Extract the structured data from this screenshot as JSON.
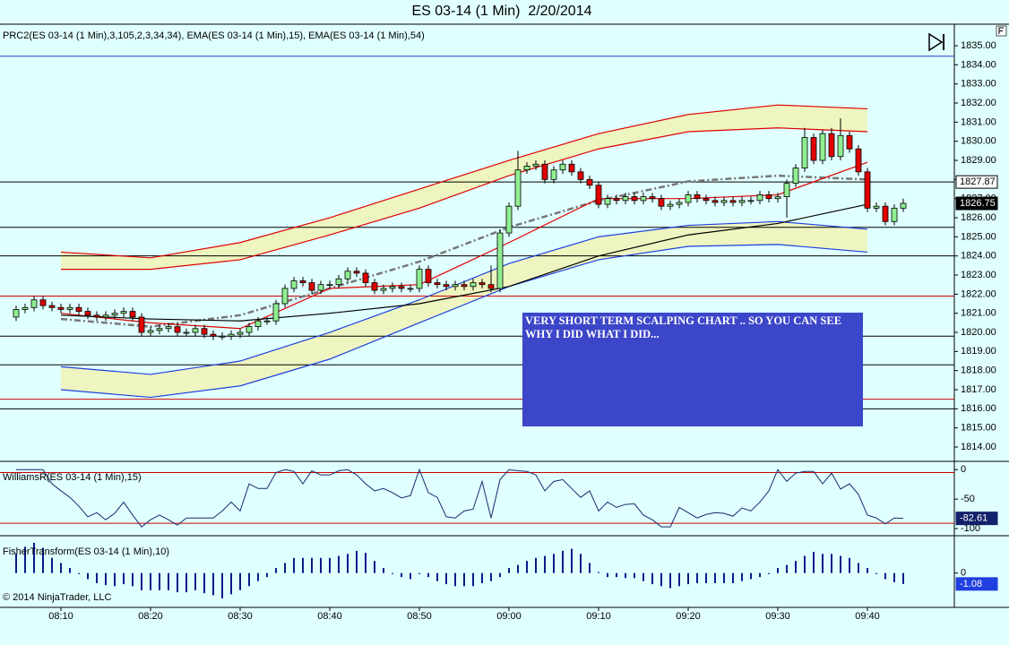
{
  "title": "ES 03-14 (1 Min)  2/20/2014",
  "copyright": "© 2014 NinjaTrader, LLC",
  "chart_data": [
    {
      "type": "candlestick",
      "label": "PRC2(ES 03-14 (1 Min),3,105,2,3,34,34), EMA(ES 03-14 (1 Min),15), EMA(ES 03-14 (1 Min),54)",
      "categories": [
        null,
        null,
        null,
        null,
        null,
        "08:10",
        null,
        null,
        null,
        null,
        null,
        null,
        null,
        null,
        null,
        "08:20",
        null,
        null,
        null,
        null,
        null,
        null,
        null,
        null,
        null,
        "08:30",
        null,
        null,
        null,
        null,
        null,
        null,
        null,
        null,
        null,
        "08:40",
        null,
        null,
        null,
        null,
        null,
        null,
        null,
        null,
        null,
        "08:50",
        null,
        null,
        null,
        null,
        null,
        null,
        null,
        null,
        null,
        "09:00",
        null,
        null,
        null,
        null,
        null,
        null,
        null,
        null,
        null,
        "09:10",
        null,
        null,
        null,
        null,
        null,
        null,
        null,
        null,
        null,
        "09:20",
        null,
        null,
        null,
        null,
        null,
        null,
        null,
        null,
        null,
        "09:30",
        null,
        null,
        null,
        null,
        null,
        null,
        null,
        null,
        null,
        "09:40",
        null,
        null,
        null,
        null
      ],
      "open": [
        1820.8,
        1821.2,
        1821.3,
        1821.7,
        1821.4,
        1821.3,
        1821.2,
        1821.3,
        1821.1,
        1820.9,
        1820.8,
        1820.9,
        1821.0,
        1821.1,
        1820.8,
        1820.0,
        1820.1,
        1820.2,
        1820.3,
        1820.0,
        1820.0,
        1820.2,
        1819.9,
        1819.8,
        1819.8,
        1819.9,
        1820.0,
        1820.3,
        1820.6,
        1820.6,
        1821.5,
        1822.3,
        1822.7,
        1822.6,
        1822.2,
        1822.5,
        1822.5,
        1822.8,
        1823.2,
        1823.1,
        1822.6,
        1822.2,
        1822.3,
        1822.4,
        1822.3,
        1822.3,
        1823.3,
        1822.6,
        1822.5,
        1822.4,
        1822.5,
        1822.4,
        1822.6,
        1822.5,
        1822.3,
        1825.2,
        1826.6,
        1828.5,
        1828.7,
        1828.8,
        1828.0,
        1828.5,
        1828.8,
        1828.4,
        1828.0,
        1827.7,
        1826.7,
        1827.0,
        1826.9,
        1827.1,
        1826.9,
        1827.1,
        1827.0,
        1826.6,
        1826.7,
        1826.8,
        1827.2,
        1827.0,
        1826.9,
        1826.8,
        1826.9,
        1826.8,
        1826.9,
        1826.9,
        1827.2,
        1827.0,
        1827.1,
        1827.8,
        1828.6,
        1830.2,
        1829.0,
        1830.4,
        1829.2,
        1830.3,
        1829.6,
        1828.4,
        1826.5,
        1826.6,
        1825.8,
        1826.5
      ],
      "high": [
        1821.4,
        1821.5,
        1821.9,
        1821.9,
        1821.6,
        1821.5,
        1821.5,
        1821.5,
        1821.3,
        1821.1,
        1821.1,
        1821.2,
        1821.3,
        1821.3,
        1821.0,
        1820.3,
        1820.4,
        1820.5,
        1820.5,
        1820.2,
        1820.4,
        1820.4,
        1820.1,
        1820.0,
        1820.1,
        1820.2,
        1820.5,
        1820.8,
        1820.8,
        1821.7,
        1822.5,
        1822.9,
        1822.9,
        1822.8,
        1822.7,
        1822.7,
        1823.0,
        1823.4,
        1823.4,
        1823.3,
        1822.8,
        1822.5,
        1822.6,
        1822.6,
        1822.5,
        1823.5,
        1823.5,
        1822.8,
        1822.7,
        1822.7,
        1822.7,
        1822.8,
        1822.8,
        1823.5,
        1825.4,
        1826.8,
        1829.5,
        1828.9,
        1829.0,
        1829.0,
        1828.7,
        1829.0,
        1829.0,
        1828.6,
        1828.2,
        1827.9,
        1827.2,
        1827.2,
        1827.3,
        1827.3,
        1827.3,
        1827.3,
        1827.2,
        1826.9,
        1827.0,
        1827.4,
        1827.4,
        1827.2,
        1827.1,
        1827.1,
        1827.1,
        1827.1,
        1827.1,
        1827.4,
        1827.4,
        1827.3,
        1828.0,
        1828.8,
        1830.7,
        1830.4,
        1830.6,
        1830.7,
        1831.2,
        1830.5,
        1829.8,
        1828.6,
        1826.8,
        1826.8,
        1826.7,
        1827.0
      ],
      "low": [
        1820.6,
        1821.0,
        1821.1,
        1821.2,
        1821.1,
        1821.0,
        1821.0,
        1820.9,
        1820.7,
        1820.6,
        1820.6,
        1820.7,
        1820.8,
        1820.6,
        1819.8,
        1819.8,
        1819.9,
        1820.0,
        1819.8,
        1819.8,
        1819.8,
        1819.7,
        1819.6,
        1819.6,
        1819.6,
        1819.7,
        1819.8,
        1820.1,
        1820.4,
        1820.4,
        1821.3,
        1822.1,
        1822.4,
        1822.0,
        1822.0,
        1822.3,
        1822.3,
        1822.6,
        1822.9,
        1822.4,
        1822.0,
        1822.0,
        1822.1,
        1822.1,
        1822.1,
        1822.1,
        1822.4,
        1822.3,
        1822.2,
        1822.2,
        1822.2,
        1822.2,
        1822.3,
        1822.1,
        1822.1,
        1825.0,
        1826.4,
        1828.3,
        1828.5,
        1827.8,
        1827.8,
        1828.3,
        1828.2,
        1827.8,
        1827.5,
        1826.5,
        1826.5,
        1826.7,
        1826.7,
        1826.7,
        1826.7,
        1826.8,
        1826.4,
        1826.4,
        1826.5,
        1826.6,
        1826.8,
        1826.7,
        1826.6,
        1826.6,
        1826.6,
        1826.6,
        1826.7,
        1826.7,
        1826.8,
        1826.8,
        1826.0,
        1827.6,
        1828.4,
        1828.8,
        1828.8,
        1829.0,
        1829.0,
        1829.4,
        1828.2,
        1826.3,
        1826.3,
        1825.6,
        1825.6,
        1826.3
      ],
      "close": [
        1821.2,
        1821.3,
        1821.7,
        1821.4,
        1821.3,
        1821.2,
        1821.3,
        1821.1,
        1820.9,
        1820.8,
        1820.9,
        1821.0,
        1821.1,
        1820.8,
        1820.0,
        1820.1,
        1820.2,
        1820.3,
        1820.0,
        1820.0,
        1820.2,
        1819.9,
        1819.8,
        1819.8,
        1819.9,
        1820.0,
        1820.3,
        1820.6,
        1820.6,
        1821.5,
        1822.3,
        1822.7,
        1822.6,
        1822.2,
        1822.5,
        1822.5,
        1822.8,
        1823.2,
        1823.1,
        1822.6,
        1822.2,
        1822.3,
        1822.4,
        1822.3,
        1822.3,
        1823.3,
        1822.6,
        1822.5,
        1822.4,
        1822.5,
        1822.4,
        1822.6,
        1822.5,
        1822.3,
        1825.2,
        1826.6,
        1828.5,
        1828.7,
        1828.8,
        1828.0,
        1828.5,
        1828.8,
        1828.4,
        1828.0,
        1827.7,
        1826.7,
        1827.0,
        1826.9,
        1827.1,
        1826.9,
        1827.1,
        1827.0,
        1826.6,
        1826.7,
        1826.8,
        1827.2,
        1827.0,
        1826.9,
        1826.8,
        1826.9,
        1826.8,
        1826.9,
        1826.9,
        1827.2,
        1827.0,
        1827.1,
        1827.8,
        1828.6,
        1830.2,
        1829.0,
        1830.4,
        1829.2,
        1830.3,
        1829.6,
        1828.4,
        1826.5,
        1826.6,
        1825.8,
        1826.5,
        1826.75
      ],
      "up_color": "#90ee90",
      "down_color": "#e00000",
      "last_marker_color": "#000000",
      "ylim": [
        1813.25,
        1836.08
      ],
      "yticks": [
        {
          "value": 1814,
          "label": "1814.00"
        },
        {
          "value": 1815,
          "label": "1815.00"
        },
        {
          "value": 1816,
          "label": "1816.00"
        },
        {
          "value": 1817,
          "label": "1817.00"
        },
        {
          "value": 1818,
          "label": "1818.00"
        },
        {
          "value": 1819,
          "label": "1819.00"
        },
        {
          "value": 1820,
          "label": "1820.00"
        },
        {
          "value": 1821,
          "label": "1821.00"
        },
        {
          "value": 1822,
          "label": "1822.00"
        },
        {
          "value": 1823,
          "label": "1823.00"
        },
        {
          "value": 1824,
          "label": "1824.00"
        },
        {
          "value": 1825,
          "label": "1825.00"
        },
        {
          "value": 1826,
          "label": "1826.00"
        },
        {
          "value": 1827,
          "label": "1827.00"
        },
        {
          "value": 1828,
          "label": "1828.00"
        },
        {
          "value": 1829,
          "label": "1829.00"
        },
        {
          "value": 1830,
          "label": "1830.00"
        },
        {
          "value": 1831,
          "label": "1831.00"
        },
        {
          "value": 1832,
          "label": "1832.00"
        },
        {
          "value": 1833,
          "label": "1833.00"
        },
        {
          "value": 1834,
          "label": "1834.00"
        },
        {
          "value": 1835,
          "label": "1835.00"
        }
      ],
      "hlines": [
        {
          "value": 1827.87,
          "color": "#000000",
          "labeled": true
        },
        {
          "value": 1825.5,
          "color": "#000000"
        },
        {
          "value": 1824.0,
          "color": "#000000"
        },
        {
          "value": 1819.8,
          "color": "#000000"
        },
        {
          "value": 1818.3,
          "color": "#000000"
        },
        {
          "value": 1816.0,
          "color": "#000000"
        },
        {
          "value": 1834.45,
          "color": "#1f3fbf"
        },
        {
          "value": 1821.9,
          "color": "#d00000"
        },
        {
          "value": 1816.5,
          "color": "#d00000"
        }
      ],
      "overlays": [
        {
          "x": [
            "08:10",
            "08:20",
            "08:30",
            "08:40",
            "08:50",
            "09:00",
            "09:10",
            "09:20",
            "09:30",
            "09:40"
          ],
          "color": "#e00000",
          "values": [
            1824.2,
            1823.9,
            1824.7,
            1826.0,
            1827.5,
            1829.0,
            1830.4,
            1831.4,
            1831.9,
            1831.7
          ]
        },
        {
          "x": [
            "08:10",
            "08:20",
            "08:30",
            "08:40",
            "08:50",
            "09:00",
            "09:10",
            "09:20",
            "09:30",
            "09:40"
          ],
          "color": "#e00000",
          "values": [
            1823.3,
            1823.3,
            1823.8,
            1825.1,
            1826.5,
            1828.2,
            1829.6,
            1830.5,
            1830.7,
            1830.5
          ]
        },
        {
          "x": [
            "08:10",
            "08:20",
            "08:30",
            "08:40",
            "08:50",
            "09:00",
            "09:10",
            "09:20",
            "09:30",
            "09:40"
          ],
          "color": "#1f3fdf",
          "values": [
            1818.2,
            1817.8,
            1818.5,
            1820.0,
            1821.7,
            1823.6,
            1825.0,
            1825.6,
            1825.8,
            1825.4
          ]
        },
        {
          "x": [
            "08:10",
            "08:20",
            "08:30",
            "08:40",
            "08:50",
            "09:00",
            "09:10",
            "09:20",
            "09:30",
            "09:40"
          ],
          "color": "#1f3fdf",
          "values": [
            1817.0,
            1816.6,
            1817.2,
            1818.6,
            1820.5,
            1822.4,
            1823.8,
            1824.5,
            1824.6,
            1824.2
          ]
        },
        {
          "x": [
            "08:10",
            "08:20",
            "08:30",
            "08:40",
            "08:50",
            "09:00",
            "09:10",
            "09:20",
            "09:30",
            "09:40"
          ],
          "color": "#777777",
          "dashed": true,
          "values": [
            1820.7,
            1820.3,
            1820.9,
            1822.3,
            1823.7,
            1825.5,
            1826.9,
            1827.9,
            1828.2,
            1828.0
          ]
        },
        {
          "x": [
            "08:10",
            "08:20",
            "08:30",
            "08:40",
            "08:50",
            "09:00",
            "09:10",
            "09:20",
            "09:30",
            "09:40"
          ],
          "color": "#e00000",
          "values": [
            1821.0,
            1820.5,
            1820.2,
            1822.3,
            1822.5,
            1824.7,
            1827.0,
            1827.0,
            1827.2,
            1828.9
          ]
        },
        {
          "x": [
            "08:10",
            "08:20",
            "08:30",
            "08:40",
            "08:50",
            "09:00",
            "09:10",
            "09:20",
            "09:30",
            "09:40"
          ],
          "color": "#000000",
          "values": [
            1820.9,
            1820.7,
            1820.6,
            1821.0,
            1821.5,
            1822.4,
            1824.0,
            1825.1,
            1825.7,
            1826.7
          ]
        }
      ],
      "bands": [
        [
          0,
          1
        ],
        [
          2,
          3
        ]
      ],
      "band_color": "#eef5c0",
      "annotation": {
        "text": "VERY SHORT TERM SCALPING CHART .. SO YOU CAN SEE WHY I DID WHAT I DID...",
        "color": "#3c46c8"
      }
    },
    {
      "type": "line",
      "label": "WilliamsR(ES 03-14 (1 Min),15)",
      "color": "#1a2a6c",
      "last_marker_color": "#13206a",
      "values": [
        0,
        0,
        0,
        0,
        -24,
        -36,
        -47,
        -62,
        -80,
        -73,
        -85,
        -74,
        -55,
        -77,
        -97,
        -85,
        -77,
        -85,
        -94,
        -82,
        -82,
        -82,
        -82,
        -70,
        -55,
        -70,
        -24,
        -32,
        -32,
        -5,
        0,
        -3,
        -24,
        -2,
        -9,
        -9,
        -2,
        0,
        -9,
        -24,
        -36,
        -32,
        -39,
        -48,
        -44,
        0,
        -39,
        -47,
        -80,
        -82,
        -70,
        -67,
        -20,
        -82,
        -17,
        0,
        -2,
        -3,
        -9,
        -36,
        -20,
        -17,
        -32,
        -47,
        -36,
        -70,
        -55,
        -64,
        -59,
        -58,
        -77,
        -85,
        -97,
        -97,
        -64,
        -73,
        -82,
        -76,
        -73,
        -74,
        -79,
        -65,
        -70,
        -55,
        -36,
        0,
        -20,
        -6,
        -3,
        -3,
        -24,
        -6,
        -33,
        -24,
        -42,
        -77,
        -82,
        -92,
        -82,
        -82.61
      ],
      "ylim": [
        -112,
        14
      ],
      "yticks": [
        0,
        -50,
        -100
      ],
      "hlines": [
        {
          "value": -5,
          "color": "#d00000"
        },
        {
          "value": -91,
          "color": "#d00000"
        }
      ]
    },
    {
      "type": "bar",
      "label": "FisherTransform(ES 03-14 (1 Min),10)",
      "color": "#0a1a8c",
      "last_marker_color": "#1f3fdf",
      "values": [
        1.9,
        2.6,
        3.0,
        2.5,
        1.5,
        1.0,
        0.5,
        -0.1,
        -0.6,
        -1.0,
        -1.2,
        -1.3,
        -1.1,
        -1.3,
        -1.7,
        -1.7,
        -1.7,
        -1.7,
        -1.9,
        -1.9,
        -1.7,
        -2.0,
        -2.2,
        -2.5,
        -2.1,
        -1.7,
        -1.3,
        -0.8,
        -0.4,
        0.5,
        1.0,
        1.5,
        1.5,
        1.5,
        1.5,
        1.5,
        1.7,
        1.9,
        2.2,
        2.0,
        1.2,
        0.5,
        -0.1,
        -0.4,
        -0.6,
        -0.1,
        -0.4,
        -0.8,
        -1.1,
        -1.3,
        -1.3,
        -1.3,
        -1.0,
        -0.8,
        -0.4,
        0.5,
        0.8,
        1.2,
        1.5,
        1.7,
        1.9,
        2.2,
        2.4,
        1.9,
        1.0,
        0.1,
        -0.4,
        -0.4,
        -0.5,
        -0.5,
        -0.8,
        -1.1,
        -1.3,
        -1.5,
        -1.3,
        -1.1,
        -1.0,
        -1.0,
        -1.0,
        -1.0,
        -1.0,
        -0.8,
        -0.6,
        -0.4,
        -0.1,
        0.5,
        0.8,
        1.2,
        1.7,
        2.1,
        1.9,
        1.9,
        1.7,
        1.5,
        1.0,
        0.5,
        -0.1,
        -0.6,
        -0.9,
        -1.08
      ],
      "ylim": [
        -3.4,
        3.7
      ],
      "yticks": [
        0
      ]
    }
  ]
}
